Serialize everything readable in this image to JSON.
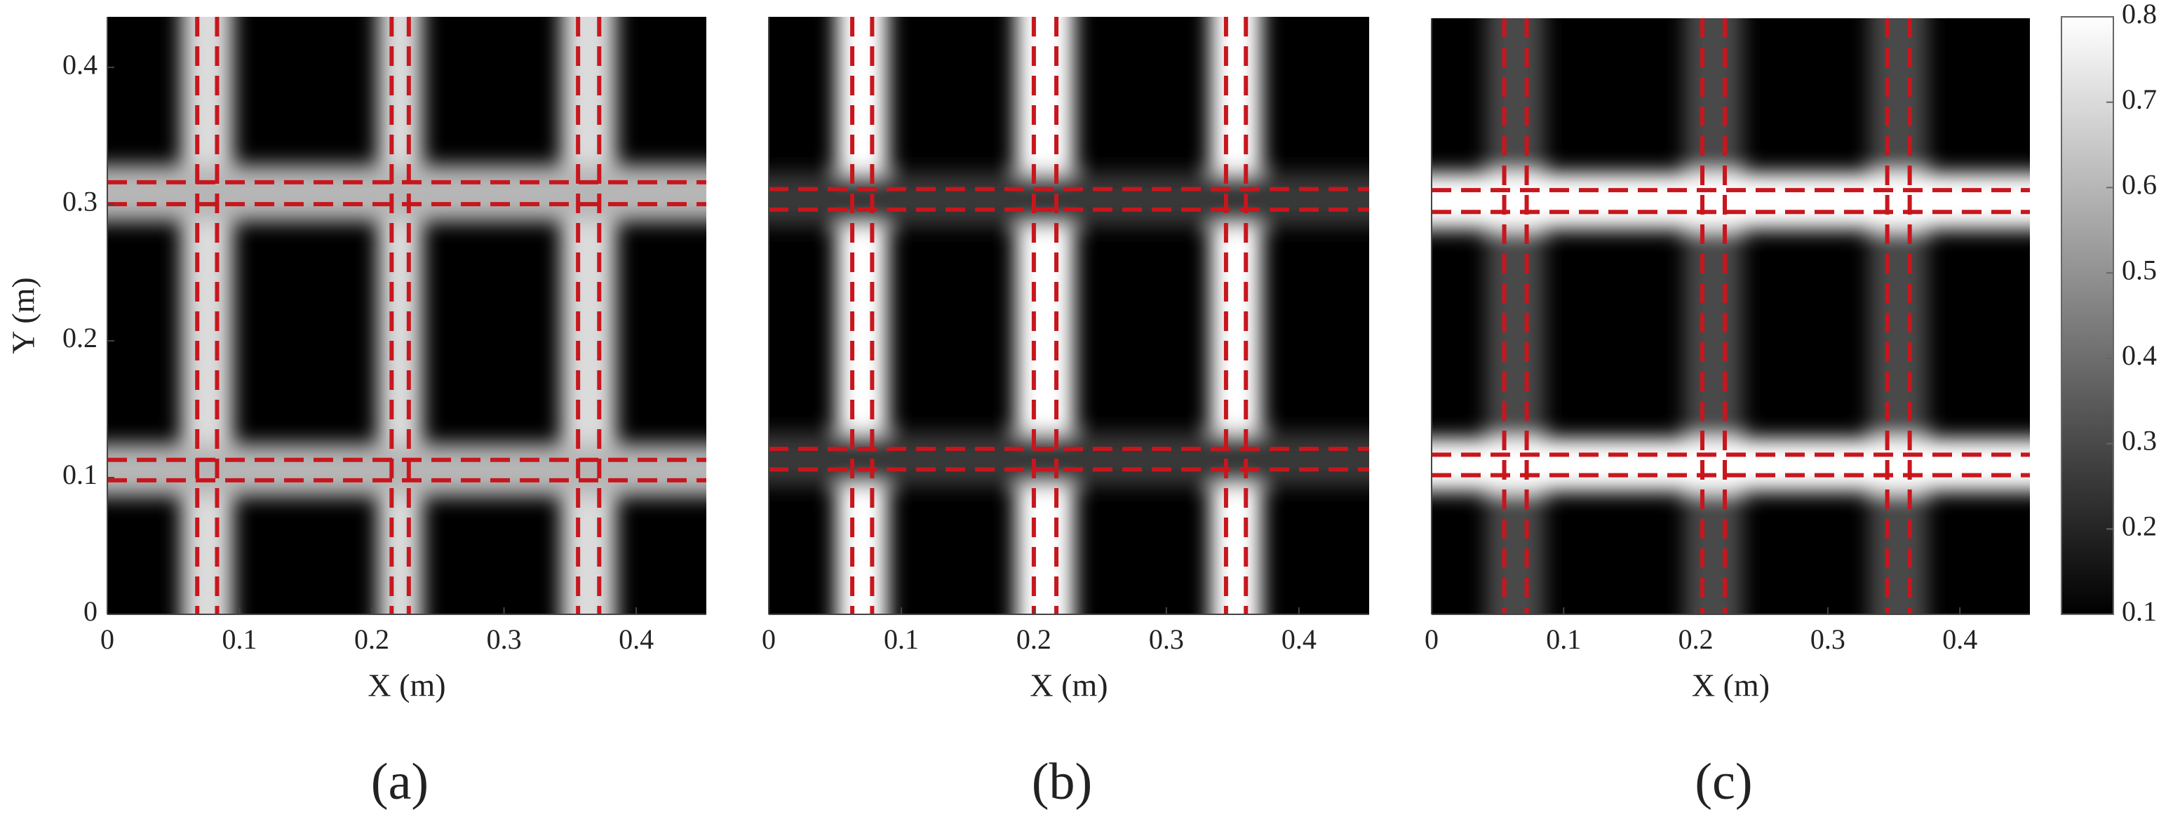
{
  "chart_data": [
    {
      "type": "heatmap",
      "caption": "(a)",
      "xlabel": "X (m)",
      "ylabel": "Y (m)",
      "xlim": [
        0,
        0.453
      ],
      "ylim": [
        0,
        0.437
      ],
      "xticks": [
        0,
        0.1,
        0.2,
        0.3,
        0.4
      ],
      "yticks": [
        0,
        0.1,
        0.2,
        0.3,
        0.4
      ],
      "vlines": [
        0.068,
        0.083,
        0.215,
        0.228,
        0.356,
        0.372
      ],
      "hlines": [
        0.316,
        0.3,
        0.113,
        0.098
      ],
      "line_color": "#c8161d",
      "band_levels": {
        "vertical": 0.7,
        "horizontal": 0.6
      }
    },
    {
      "type": "heatmap",
      "caption": "(b)",
      "xlabel": "X (m)",
      "xlim": [
        0,
        0.453
      ],
      "ylim": [
        0,
        0.437
      ],
      "xticks": [
        0,
        0.1,
        0.2,
        0.3,
        0.4
      ],
      "vlines": [
        0.063,
        0.078,
        0.2,
        0.217,
        0.345,
        0.36
      ],
      "hlines": [
        0.311,
        0.296,
        0.121,
        0.106
      ],
      "line_color": "#c8161d",
      "band_levels": {
        "vertical": 0.8,
        "horizontal": 0.25
      }
    },
    {
      "type": "heatmap",
      "caption": "(c)",
      "xlabel": "X (m)",
      "xlim": [
        0,
        0.453
      ],
      "ylim": [
        0,
        0.437
      ],
      "xticks": [
        0,
        0.1,
        0.2,
        0.3,
        0.4
      ],
      "vlines": [
        0.055,
        0.072,
        0.205,
        0.222,
        0.345,
        0.362
      ],
      "hlines": [
        0.311,
        0.295,
        0.117,
        0.102
      ],
      "line_color": "#c8161d",
      "band_levels": {
        "vertical": 0.3,
        "horizontal": 0.8
      }
    },
    {
      "type": "colorbar",
      "clim": [
        0.1,
        0.8
      ],
      "ticks": [
        0.1,
        0.2,
        0.3,
        0.4,
        0.5,
        0.6,
        0.7,
        0.8
      ]
    }
  ]
}
